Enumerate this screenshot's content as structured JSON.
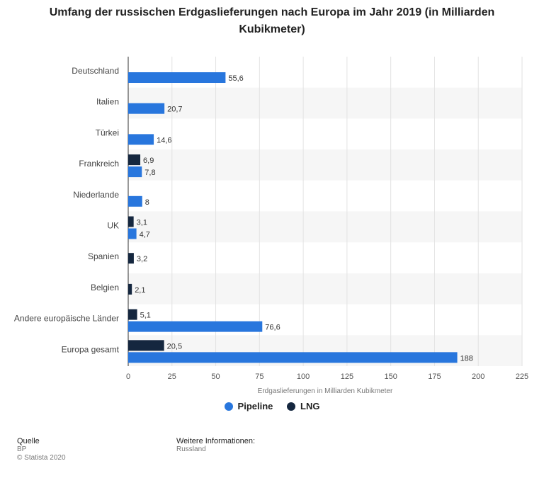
{
  "title": "Umfang der russischen Erdgaslieferungen nach Europa im Jahr 2019 (in Milliarden Kubikmeter)",
  "colors": {
    "pipeline": "#2876dd",
    "lng": "#15273f"
  },
  "legend": {
    "pipeline": "Pipeline",
    "lng": "LNG"
  },
  "footer": {
    "source_head": "Quelle",
    "source_lines": [
      "BP",
      "© Statista 2020"
    ],
    "info_head": "Weitere Informationen:",
    "info_line": "Russland"
  },
  "chart_data": {
    "type": "bar",
    "orientation": "horizontal",
    "xlabel": "Erdgaslieferungen in Milliarden Kubikmeter",
    "xlim": [
      0,
      225
    ],
    "xticks": [
      0,
      25,
      50,
      75,
      100,
      125,
      150,
      175,
      200,
      225
    ],
    "categories": [
      "Deutschland",
      "Italien",
      "Türkei",
      "Frankreich",
      "Niederlande",
      "UK",
      "Spanien",
      "Belgien",
      "Andere europäische Länder",
      "Europa gesamt"
    ],
    "series": [
      {
        "name": "LNG",
        "values": [
          null,
          null,
          null,
          6.9,
          null,
          3.1,
          3.2,
          2.1,
          5.1,
          20.5
        ],
        "labels": [
          "",
          "",
          "",
          "6,9",
          "",
          "3,1",
          "3,2",
          "2,1",
          "5,1",
          "20,5"
        ]
      },
      {
        "name": "Pipeline",
        "values": [
          55.6,
          20.7,
          14.6,
          7.8,
          8,
          4.7,
          null,
          null,
          76.6,
          188
        ],
        "labels": [
          "55,6",
          "20,7",
          "14,6",
          "7,8",
          "8",
          "4,7",
          "",
          "",
          "76,6",
          "188"
        ]
      }
    ]
  }
}
